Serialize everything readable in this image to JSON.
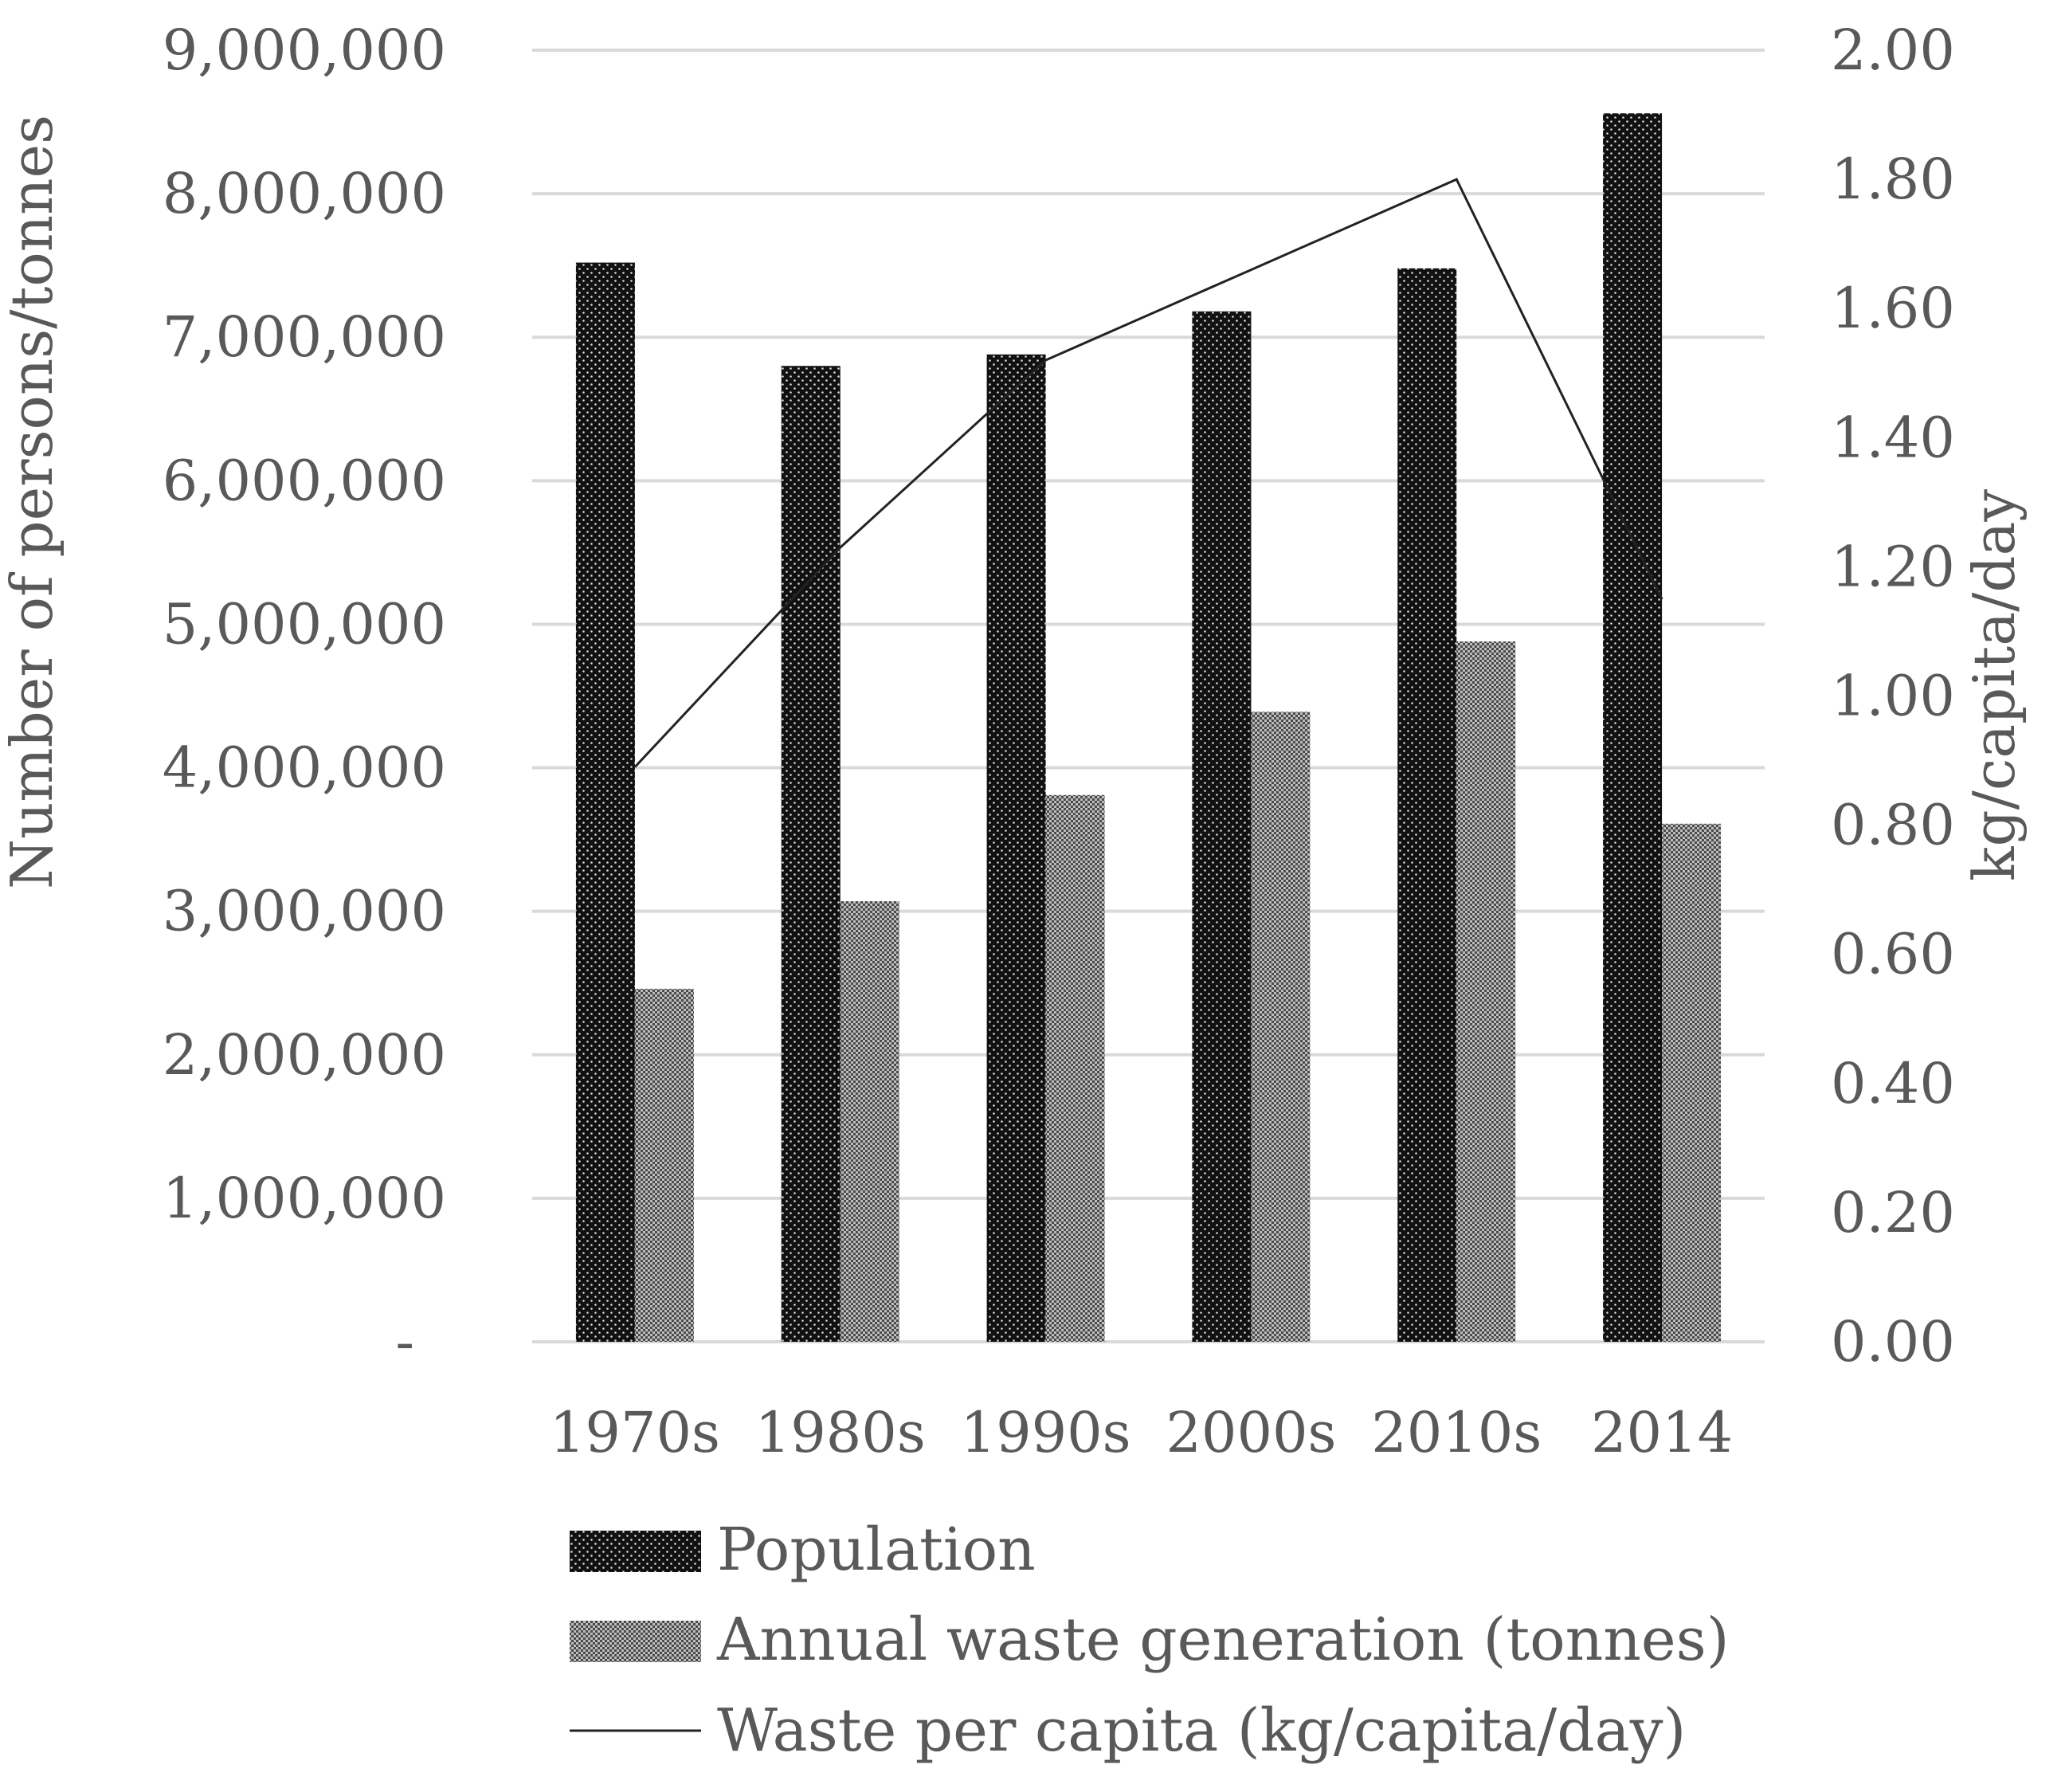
{
  "chart_data": {
    "type": "bar",
    "categories": [
      "1970s",
      "1980s",
      "1990s",
      "2000s",
      "2010s",
      "2014"
    ],
    "series": [
      {
        "name": "Population",
        "type": "bar",
        "axis": "left",
        "values": [
          7520000,
          6800000,
          6880000,
          7180000,
          7480000,
          8560000
        ]
      },
      {
        "name": "Annual waste generation (tonnes)",
        "type": "bar",
        "axis": "left",
        "values": [
          2460000,
          3070000,
          3810000,
          4390000,
          4880000,
          3610000
        ]
      },
      {
        "name": "Waste per capita (kg/capita/day)",
        "type": "line",
        "axis": "right",
        "values": [
          0.89,
          1.23,
          1.52,
          1.66,
          1.8,
          1.15
        ]
      }
    ],
    "left_axis": {
      "label": "Number of persons/tonnes",
      "ylim": [
        0,
        9000000
      ],
      "ticks": [
        0,
        1000000,
        2000000,
        3000000,
        4000000,
        5000000,
        6000000,
        7000000,
        8000000,
        9000000
      ],
      "tick_labels": [
        "-",
        "1,000,000",
        "2,000,000",
        "3,000,000",
        "4,000,000",
        "5,000,000",
        "6,000,000",
        "7,000,000",
        "8,000,000",
        "9,000,000"
      ]
    },
    "right_axis": {
      "label": "kg/capita/day",
      "ylim": [
        0,
        2
      ],
      "ticks": [
        0,
        0.2,
        0.4,
        0.6,
        0.8,
        1.0,
        1.2,
        1.4,
        1.6,
        1.8,
        2.0
      ],
      "tick_labels": [
        "0.00",
        "0.20",
        "0.40",
        "0.60",
        "0.80",
        "1.00",
        "1.20",
        "1.40",
        "1.60",
        "1.80",
        "2.00"
      ]
    },
    "grid": true,
    "legend": {
      "position": "bottom",
      "entries": [
        "Population",
        "Annual waste generation (tonnes)",
        "Waste per capita (kg/capita/day)"
      ]
    },
    "colors": {
      "text": "#595959",
      "grid": "#d9d9d9",
      "population": "#111111",
      "waste": "#555555",
      "line": "#222222"
    }
  }
}
